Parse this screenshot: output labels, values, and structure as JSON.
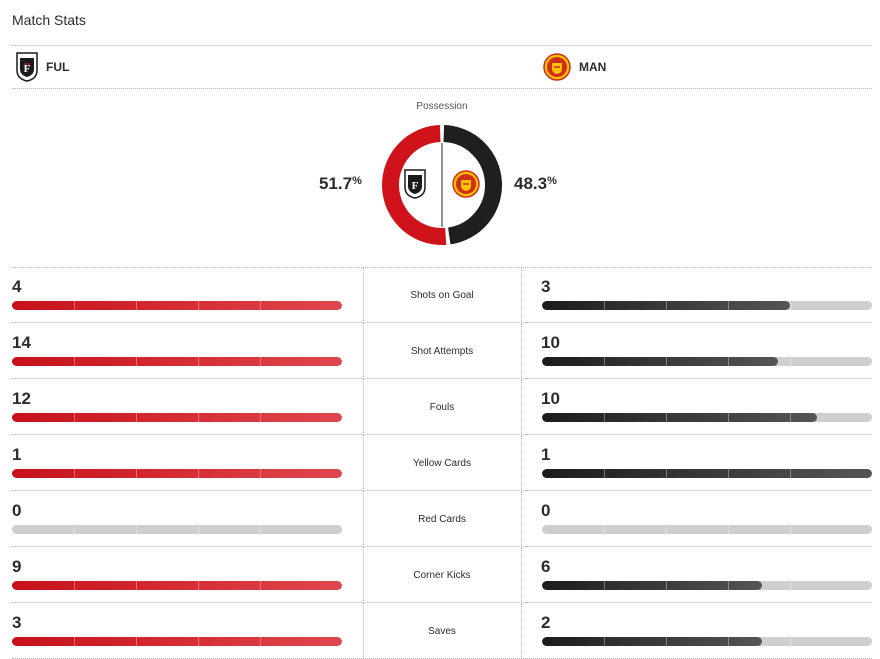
{
  "header": {
    "title": "Match Stats"
  },
  "teams": {
    "home": {
      "abbr": "FUL",
      "crest_icon": "fulham-crest-icon",
      "color": "#d0121b"
    },
    "away": {
      "abbr": "MAN",
      "crest_icon": "man-utd-crest-icon",
      "color": "#1f1f1f"
    }
  },
  "possession": {
    "label": "Possession",
    "home": "51.7",
    "away": "48.3",
    "unit": "%",
    "home_value": 51.7,
    "away_value": 48.3
  },
  "stats": [
    {
      "label": "Shots on Goal",
      "home": "4",
      "away": "3",
      "home_fill": 1.0,
      "away_fill": 0.75
    },
    {
      "label": "Shot Attempts",
      "home": "14",
      "away": "10",
      "home_fill": 1.0,
      "away_fill": 0.714
    },
    {
      "label": "Fouls",
      "home": "12",
      "away": "10",
      "home_fill": 1.0,
      "away_fill": 0.833
    },
    {
      "label": "Yellow Cards",
      "home": "1",
      "away": "1",
      "home_fill": 1.0,
      "away_fill": 1.0
    },
    {
      "label": "Red Cards",
      "home": "0",
      "away": "0",
      "home_fill": 0.0,
      "away_fill": 0.0
    },
    {
      "label": "Corner Kicks",
      "home": "9",
      "away": "6",
      "home_fill": 1.0,
      "away_fill": 0.667
    },
    {
      "label": "Saves",
      "home": "3",
      "away": "2",
      "home_fill": 1.0,
      "away_fill": 0.667
    }
  ]
}
